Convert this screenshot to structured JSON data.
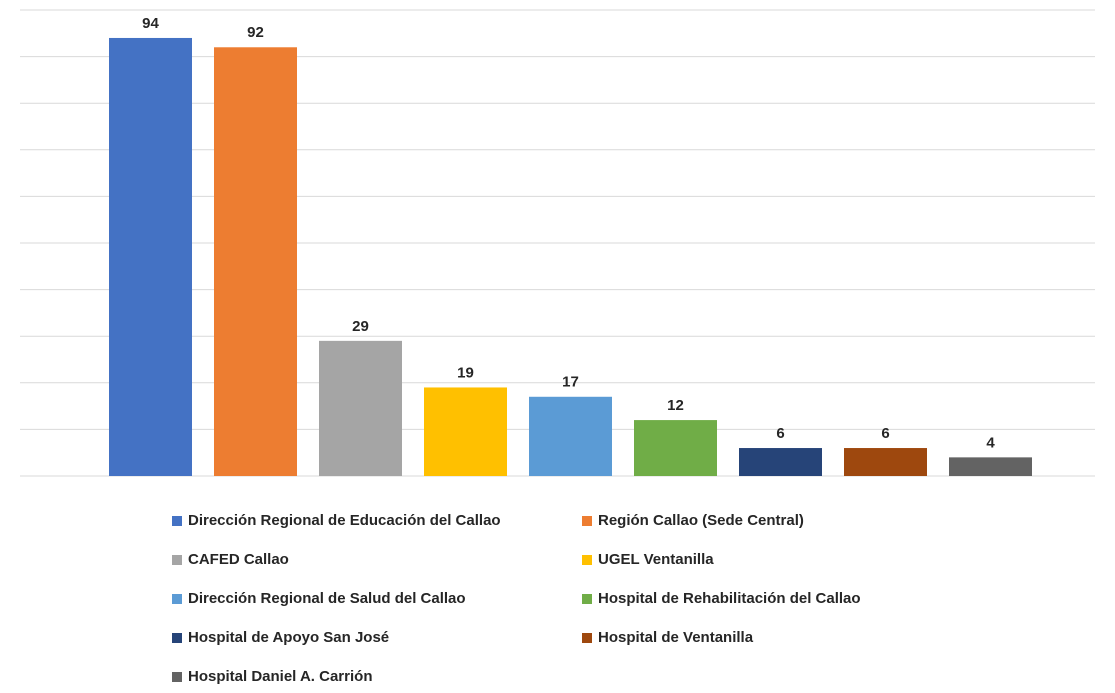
{
  "chart_data": {
    "type": "bar",
    "categories": [
      "Dirección Regional de Educación del Callao",
      "Región Callao (Sede Central)",
      "CAFED Callao",
      "UGEL Ventanilla",
      "Dirección Regional de Salud del Callao",
      "Hospital de Rehabilitación del Callao",
      "Hospital de Apoyo San José",
      "Hospital de Ventanilla",
      "Hospital Daniel A. Carrión"
    ],
    "values": [
      94,
      92,
      29,
      19,
      17,
      12,
      6,
      6,
      4
    ],
    "colors": [
      "#4472c4",
      "#ed7d31",
      "#a5a5a5",
      "#ffc000",
      "#5b9bd5",
      "#70ad47",
      "#264478",
      "#9e480e",
      "#636363"
    ],
    "ylim": [
      0,
      100
    ],
    "yticks": [
      0,
      10,
      20,
      30,
      40,
      50,
      60,
      70,
      80,
      90,
      100
    ],
    "grid": true,
    "tick_labels": false,
    "legend": "bottom"
  }
}
